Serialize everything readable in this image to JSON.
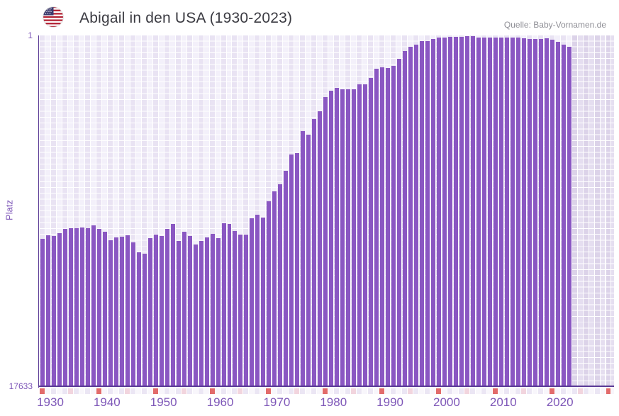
{
  "header": {
    "title": "Abigail in den USA (1930-2023)",
    "source": "Quelle: Baby-Vornamen.de",
    "flag_icon": "us-flag-icon"
  },
  "chart_data": {
    "type": "bar",
    "title": "Abigail in den USA (1930-2023)",
    "ylabel": "Platz",
    "yaxis": {
      "top_label": "1",
      "bottom_label": "17633",
      "inverted": true,
      "best_rank_at_top": 1,
      "worst_rank_at_bottom": 17633
    },
    "x_tick_labels": [
      "1930",
      "1940",
      "1950",
      "1960",
      "1970",
      "1980",
      "1990",
      "2000",
      "2010",
      "2020"
    ],
    "year_start": 1930,
    "year_end": 2023,
    "grid_year_end": 2031,
    "marker_rule": {
      "decade_years": "red",
      "mid_decade_years": "pink"
    },
    "values_height_pct": [
      42.1,
      43.1,
      43.0,
      43.7,
      45.0,
      45.1,
      45.1,
      45.4,
      45.1,
      46.0,
      44.9,
      44.2,
      41.8,
      42.5,
      42.8,
      43.1,
      41.1,
      38.4,
      38.0,
      42.3,
      43.3,
      42.9,
      45.0,
      46.3,
      41.5,
      44.2,
      42.9,
      40.5,
      41.5,
      42.5,
      43.6,
      42.3,
      46.5,
      46.3,
      44.3,
      43.3,
      43.3,
      47.9,
      49.0,
      48.2,
      52.8,
      55.6,
      57.6,
      61.5,
      66.2,
      66.5,
      72.8,
      71.7,
      76.3,
      78.5,
      82.5,
      84.3,
      85.1,
      84.7,
      84.7,
      84.7,
      86.0,
      86.0,
      88.0,
      90.6,
      91.0,
      90.7,
      91.4,
      93.3,
      95.6,
      96.7,
      97.3,
      98.3,
      98.3,
      99.0,
      99.5,
      99.5,
      99.7,
      99.7,
      99.7,
      99.9,
      99.8,
      99.5,
      99.5,
      99.5,
      99.5,
      99.5,
      99.5,
      99.5,
      99.5,
      99.3,
      99.0,
      99.1,
      99.1,
      99.2,
      98.9,
      98.2,
      97.4,
      96.8
    ]
  },
  "colors": {
    "bar": "#8a57c2",
    "axis_line": "#5a3a96",
    "tick_text": "#7e57b8",
    "title_text": "#3b3b42",
    "source_text": "#8f8f96",
    "col_odd": "#f3f0fa",
    "col_even": "#e9e3f3",
    "col_odd_after": "#e5def0",
    "col_even_after": "#dcd3e9",
    "marker_decade": "#e26b6b",
    "marker_half": "#f2d5de",
    "strip_even": "#ebe6f4",
    "strip_odd": "#f8f6fb",
    "flag_red": "#b22234",
    "flag_blue": "#3c3b6e"
  }
}
